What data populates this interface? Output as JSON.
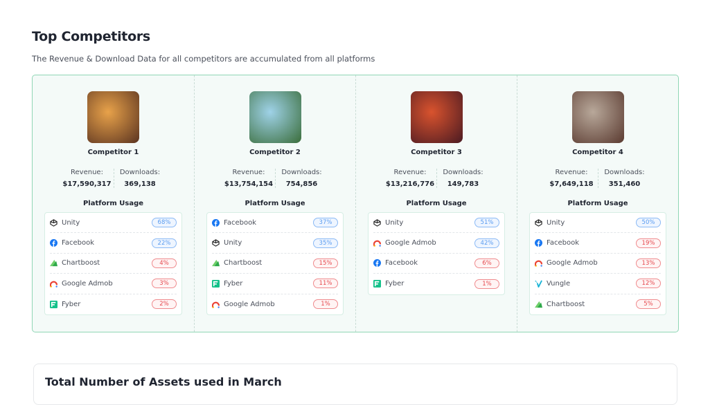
{
  "header": {
    "title": "Top Competitors",
    "subtitle": "The Revenue & Download Data for all competitors are accumulated from all platforms"
  },
  "labels": {
    "revenue": "Revenue:",
    "downloads": "Downloads:",
    "platform_usage": "Platform Usage"
  },
  "colors": {
    "accent_border": "#8fd6b5",
    "badge_blue": "#5a9cf0",
    "badge_red": "#e5484d"
  },
  "competitors": [
    {
      "name": "Competitor 1",
      "revenue": "$17,590,317",
      "downloads": "369,138",
      "art": [
        "#e8a24a",
        "#5a3320"
      ],
      "platforms": [
        {
          "name": "Unity",
          "icon": "unity-icon",
          "pct": "68%",
          "level": "blue"
        },
        {
          "name": "Facebook",
          "icon": "facebook-icon",
          "pct": "22%",
          "level": "blue"
        },
        {
          "name": "Chartboost",
          "icon": "chartboost-icon",
          "pct": "4%",
          "level": "red"
        },
        {
          "name": "Google Admob",
          "icon": "admob-icon",
          "pct": "3%",
          "level": "red"
        },
        {
          "name": "Fyber",
          "icon": "fyber-icon",
          "pct": "2%",
          "level": "red"
        }
      ]
    },
    {
      "name": "Competitor 2",
      "revenue": "$13,754,154",
      "downloads": "754,856",
      "art": [
        "#9fd2e8",
        "#3a6d3a"
      ],
      "platforms": [
        {
          "name": "Facebook",
          "icon": "facebook-icon",
          "pct": "37%",
          "level": "blue"
        },
        {
          "name": "Unity",
          "icon": "unity-icon",
          "pct": "35%",
          "level": "blue"
        },
        {
          "name": "Chartboost",
          "icon": "chartboost-icon",
          "pct": "15%",
          "level": "red"
        },
        {
          "name": "Fyber",
          "icon": "fyber-icon",
          "pct": "11%",
          "level": "red"
        },
        {
          "name": "Google Admob",
          "icon": "admob-icon",
          "pct": "1%",
          "level": "red"
        }
      ]
    },
    {
      "name": "Competitor 3",
      "revenue": "$13,216,776",
      "downloads": "149,783",
      "art": [
        "#d9532e",
        "#4a1a22"
      ],
      "platforms": [
        {
          "name": "Unity",
          "icon": "unity-icon",
          "pct": "51%",
          "level": "blue"
        },
        {
          "name": "Google Admob",
          "icon": "admob-icon",
          "pct": "42%",
          "level": "blue"
        },
        {
          "name": "Facebook",
          "icon": "facebook-icon",
          "pct": "6%",
          "level": "red"
        },
        {
          "name": "Fyber",
          "icon": "fyber-icon",
          "pct": "1%",
          "level": "red"
        }
      ]
    },
    {
      "name": "Competitor 4",
      "revenue": "$7,649,118",
      "downloads": "351,460",
      "art": [
        "#b8a89a",
        "#5a3a30"
      ],
      "platforms": [
        {
          "name": "Unity",
          "icon": "unity-icon",
          "pct": "50%",
          "level": "blue"
        },
        {
          "name": "Facebook",
          "icon": "facebook-icon",
          "pct": "19%",
          "level": "red"
        },
        {
          "name": "Google Admob",
          "icon": "admob-icon",
          "pct": "13%",
          "level": "red"
        },
        {
          "name": "Vungle",
          "icon": "vungle-icon",
          "pct": "12%",
          "level": "red"
        },
        {
          "name": "Chartboost",
          "icon": "chartboost-icon",
          "pct": "5%",
          "level": "red"
        }
      ]
    }
  ],
  "assets_card": {
    "title": "Total Number of Assets used in March"
  }
}
